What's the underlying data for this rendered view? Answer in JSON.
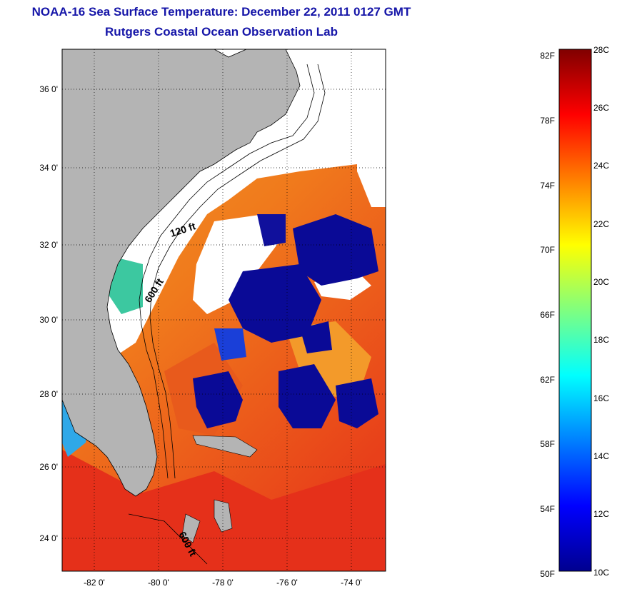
{
  "header": {
    "title": "NOAA-16 Sea Surface Temperature:  December 22, 2011 0127 GMT",
    "subtitle": "Rutgers Coastal Ocean Observation Lab"
  },
  "map": {
    "lat_labels": [
      "36 0'",
      "34 0'",
      "32 0'",
      "30 0'",
      "28 0'",
      "26 0'",
      "24 0'"
    ],
    "lon_labels": [
      "-82 0'",
      "-80 0'",
      "-78 0'",
      "-76 0'",
      "-74 0'"
    ],
    "contour_labels": [
      "120 ft",
      "600 ft",
      "600 ft"
    ],
    "colors": {
      "land": "#b4b4b4",
      "cloud": "#ffffff",
      "cold": "#0a0a96",
      "warm": "#e83a14"
    }
  },
  "colorbar": {
    "fahrenheit_labels": [
      "82F",
      "78F",
      "74F",
      "70F",
      "66F",
      "62F",
      "58F",
      "54F",
      "50F"
    ],
    "celsius_labels": [
      "28C",
      "26C",
      "24C",
      "22C",
      "20C",
      "18C",
      "16C",
      "14C",
      "12C",
      "10C"
    ],
    "scale": "jet"
  }
}
